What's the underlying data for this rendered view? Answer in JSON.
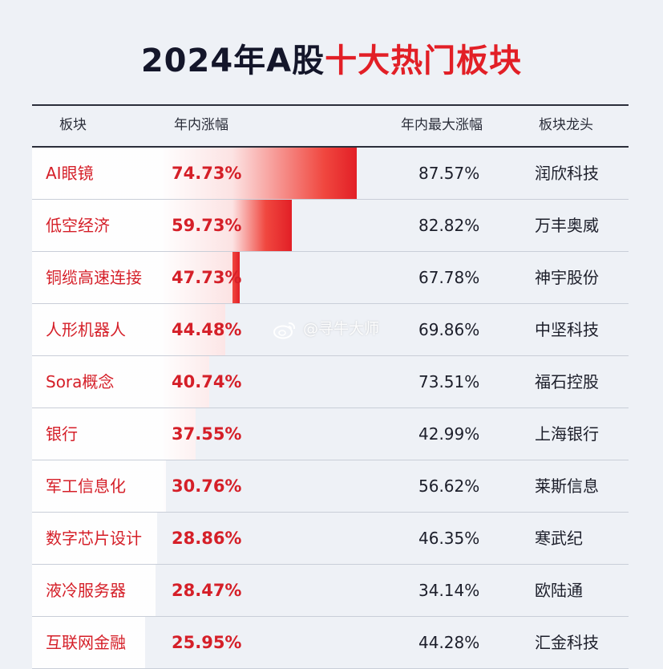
{
  "title": {
    "prefix": "2024年A股",
    "highlight": "十大热门板块"
  },
  "headers": {
    "category": "板块",
    "ytd": "年内涨幅",
    "max": "年内最大涨幅",
    "leader": "板块龙头"
  },
  "watermark": "@寻牛大师",
  "colors": {
    "accent": "#e21f26",
    "text": "#1c1e2a",
    "background": "#eef1f6"
  },
  "chart_data": {
    "type": "bar",
    "orientation": "horizontal",
    "title": "2024年A股十大热门板块",
    "categories": [
      "AI眼镜",
      "低空经济",
      "铜缆高速连接",
      "人形机器人",
      "Sora概念",
      "银行",
      "军工信息化",
      "数字芯片设计",
      "液冷服务器",
      "互联网金融"
    ],
    "series": [
      {
        "name": "年内涨幅",
        "values": [
          74.73,
          59.73,
          47.73,
          44.48,
          40.74,
          37.55,
          30.76,
          28.86,
          28.47,
          25.95
        ]
      }
    ],
    "value_labels": [
      "74.73%",
      "59.73%",
      "47.73%",
      "44.48%",
      "40.74%",
      "37.55%",
      "30.76%",
      "28.86%",
      "28.47%",
      "25.95%"
    ],
    "max_gain": [
      "87.57%",
      "82.82%",
      "67.78%",
      "69.86%",
      "73.51%",
      "42.99%",
      "56.62%",
      "46.35%",
      "34.14%",
      "44.28%"
    ],
    "leaders": [
      "润欣科技",
      "万丰奥威",
      "神宇股份",
      "中坚科技",
      "福石控股",
      "上海银行",
      "莱斯信息",
      "寒武纪",
      "欧陆通",
      "汇金科技"
    ],
    "xlim": [
      0,
      83
    ],
    "grid": false
  }
}
